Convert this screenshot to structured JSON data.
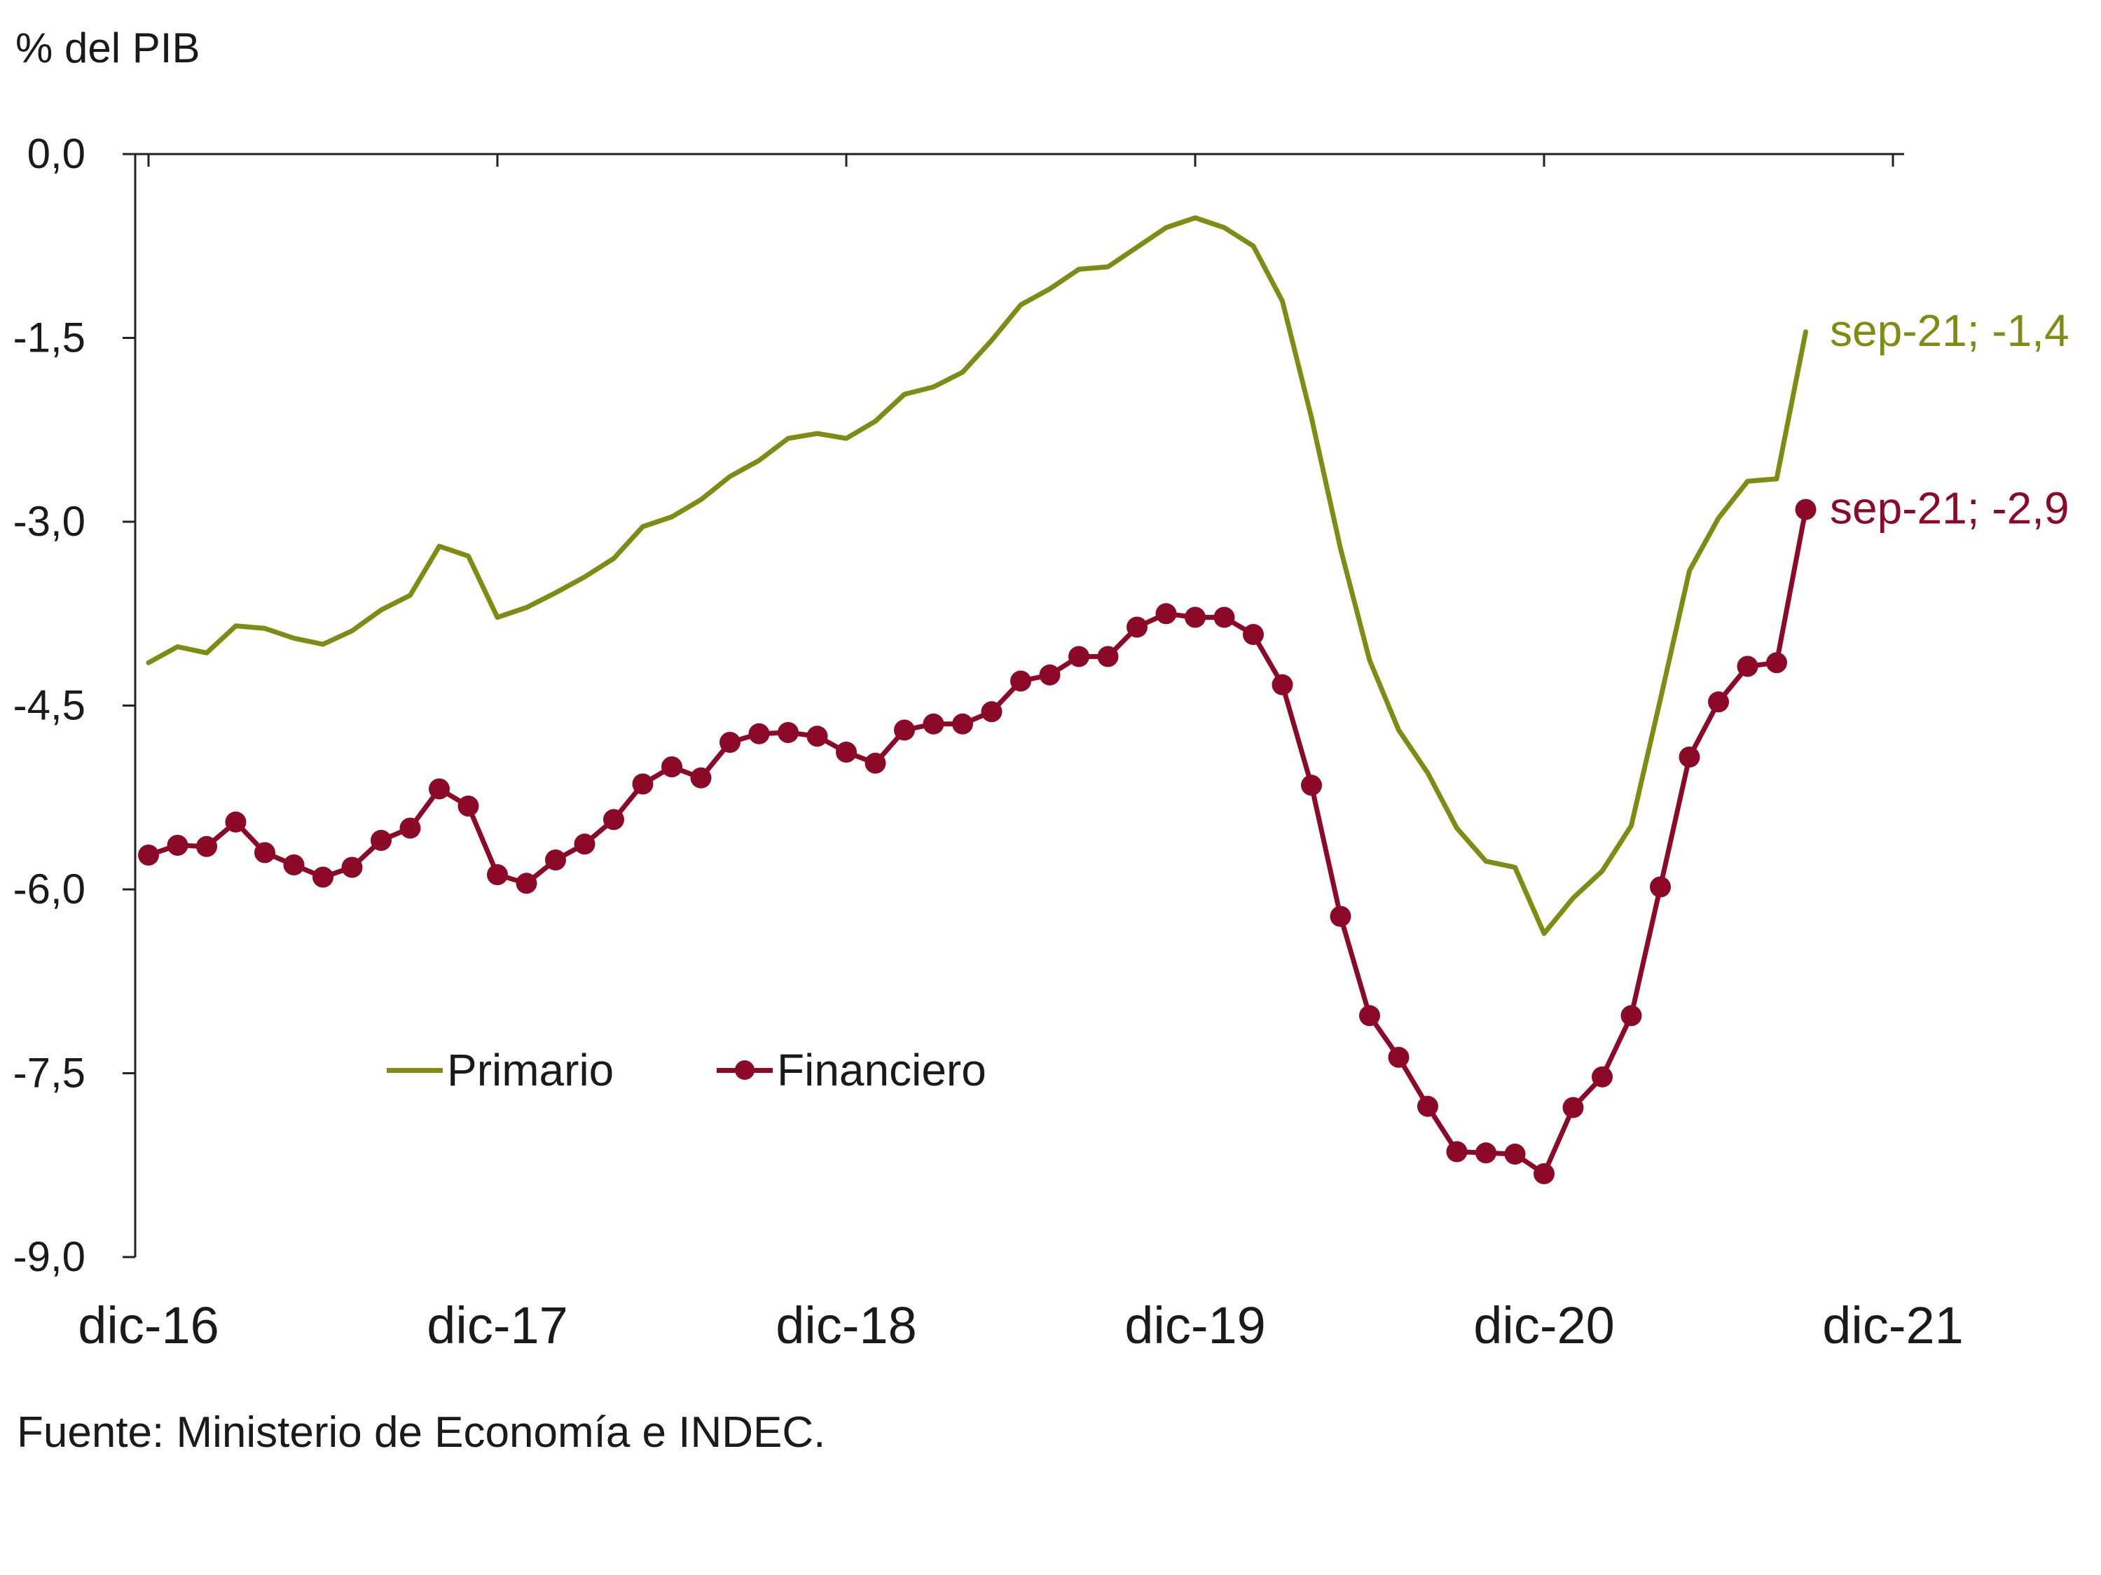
{
  "chart_data": {
    "type": "line",
    "ylabel": "% del PIB",
    "source": "Fuente: Ministerio de Economía e INDEC.",
    "ylim": [
      -9.0,
      0.0
    ],
    "yticks": [
      "0,0",
      "-1,5",
      "-3,0",
      "-4,5",
      "-6,0",
      "-7,5",
      "-9,0"
    ],
    "ytick_values": [
      0,
      -1.5,
      -3.0,
      -4.5,
      -6.0,
      -7.5,
      -9.0
    ],
    "xtick_labels": [
      "dic-16",
      "dic-17",
      "dic-18",
      "dic-19",
      "dic-20",
      "dic-21"
    ],
    "x_start": "dic-16",
    "x_end": "sep-21",
    "grid": false,
    "legend_position": "bottom-left-center",
    "series": [
      {
        "name": "Primario",
        "color": "#7F8C14",
        "marker": "none",
        "end_label": "sep-21; -1,4",
        "values": [
          -4.15,
          -4.02,
          -4.07,
          -3.85,
          -3.87,
          -3.95,
          -4.0,
          -3.89,
          -3.72,
          -3.6,
          -3.2,
          -3.28,
          -3.78,
          -3.7,
          -3.58,
          -3.45,
          -3.3,
          -3.04,
          -2.96,
          -2.82,
          -2.63,
          -2.5,
          -2.32,
          -2.28,
          -2.32,
          -2.18,
          -1.96,
          -1.9,
          -1.78,
          -1.52,
          -1.23,
          -1.1,
          -0.94,
          -0.92,
          -0.76,
          -0.6,
          -0.52,
          -0.6,
          -0.75,
          -1.2,
          -2.15,
          -3.22,
          -4.13,
          -4.7,
          -5.05,
          -5.5,
          -5.77,
          -5.82,
          -6.36,
          -6.07,
          -5.85,
          -5.48,
          -4.45,
          -3.4,
          -2.97,
          -2.67,
          -2.65,
          -1.45
        ]
      },
      {
        "name": "Financiero",
        "color": "#8C0A28",
        "marker": "circle",
        "end_label": "sep-21; -2,9",
        "values": [
          -5.72,
          -5.64,
          -5.65,
          -5.45,
          -5.7,
          -5.8,
          -5.9,
          -5.82,
          -5.6,
          -5.5,
          -5.18,
          -5.32,
          -5.88,
          -5.95,
          -5.76,
          -5.63,
          -5.43,
          -5.14,
          -5.0,
          -5.09,
          -4.8,
          -4.73,
          -4.72,
          -4.75,
          -4.88,
          -4.97,
          -4.7,
          -4.65,
          -4.65,
          -4.55,
          -4.3,
          -4.25,
          -4.1,
          -4.1,
          -3.86,
          -3.75,
          -3.78,
          -3.78,
          -3.92,
          -4.33,
          -5.15,
          -6.22,
          -7.03,
          -7.37,
          -7.77,
          -8.14,
          -8.15,
          -8.16,
          -8.32,
          -7.78,
          -7.53,
          -7.03,
          -5.98,
          -4.92,
          -4.47,
          -4.18,
          -4.15,
          -2.9
        ]
      }
    ]
  }
}
